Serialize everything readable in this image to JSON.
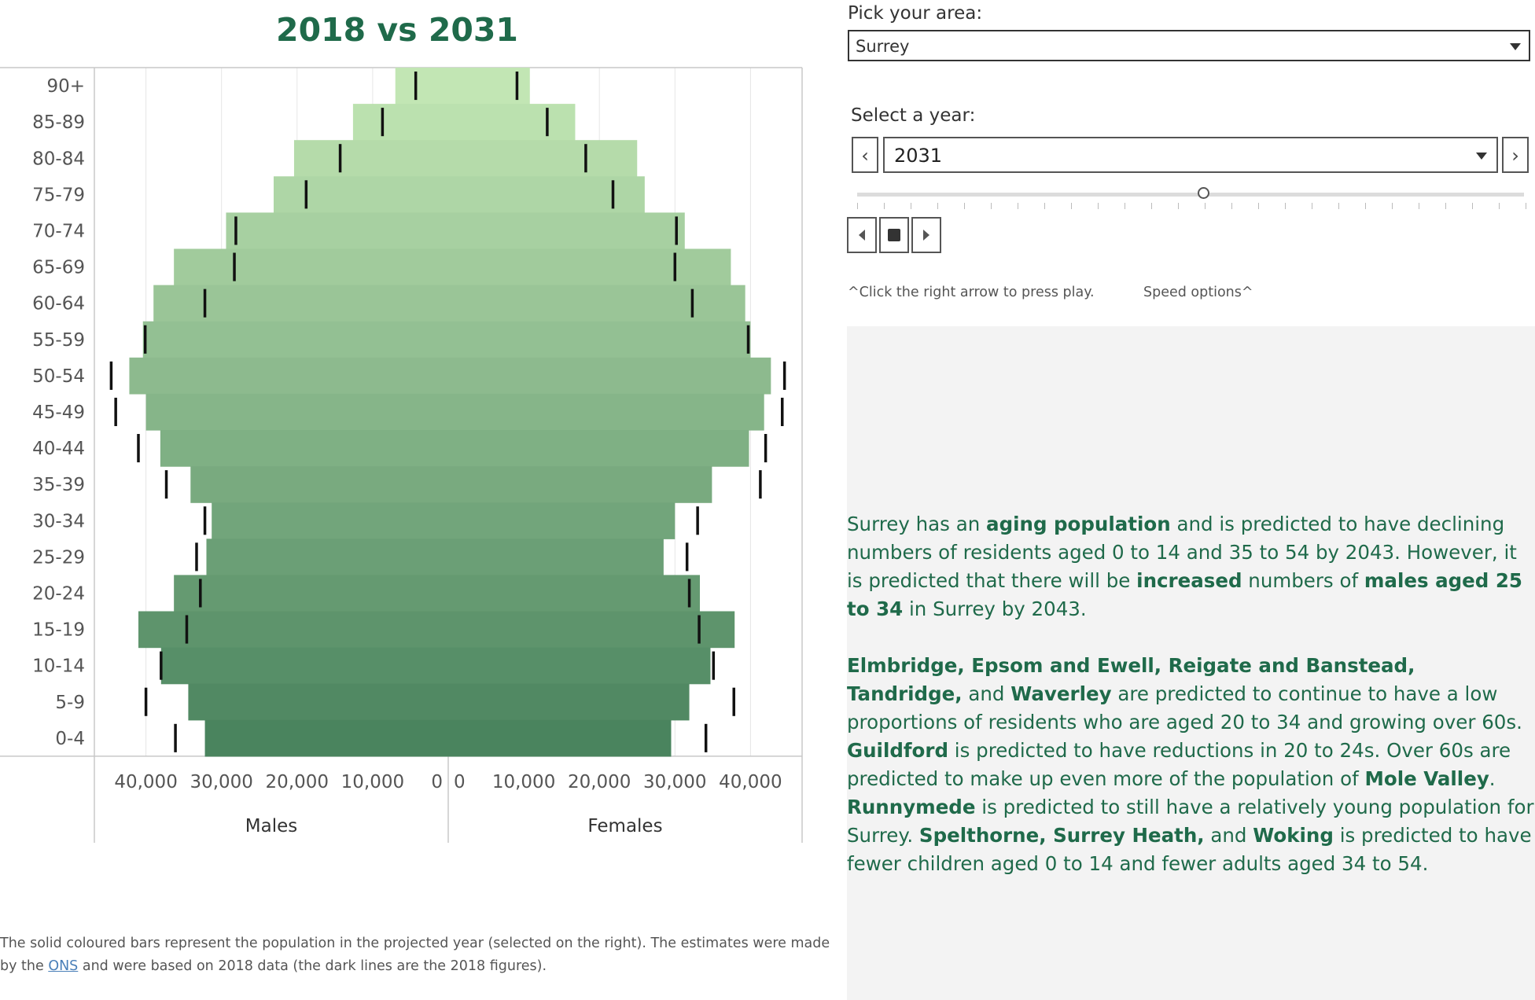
{
  "chart_data": {
    "type": "bar",
    "title": "2018 vs 2031",
    "orientation": "horizontal-butterfly",
    "categories": [
      "90+",
      "85-89",
      "80-84",
      "75-79",
      "70-74",
      "65-69",
      "60-64",
      "55-59",
      "50-54",
      "45-49",
      "40-44",
      "35-39",
      "30-34",
      "25-29",
      "20-24",
      "15-19",
      "10-14",
      "5-9",
      "0-4"
    ],
    "series": [
      {
        "name": "Males",
        "values": [
          7000,
          12600,
          20400,
          23100,
          29400,
          36300,
          39000,
          40400,
          42200,
          40000,
          38100,
          34100,
          31300,
          32000,
          36300,
          41000,
          38000,
          34400,
          32200
        ]
      },
      {
        "name": "Females",
        "values": [
          10800,
          16800,
          25000,
          26000,
          31300,
          37400,
          39300,
          40000,
          42700,
          41800,
          39800,
          34900,
          30000,
          28500,
          33300,
          37900,
          34700,
          31900,
          29500
        ]
      },
      {
        "name": "Males",
        "values": [
          4300,
          8700,
          14300,
          18800,
          28100,
          28300,
          32200,
          40100,
          44600,
          44000,
          41000,
          37300,
          32200,
          33300,
          32800,
          34600,
          38000,
          40000,
          36100
        ]
      },
      {
        "name": "Females",
        "values": [
          9100,
          13100,
          18200,
          21800,
          30200,
          30000,
          32300,
          39700,
          44500,
          44200,
          42000,
          41300,
          33000,
          31600,
          31900,
          33200,
          35100,
          37800,
          34100
        ]
      }
    ],
    "xticks": [
      "40,000",
      "30,000",
      "20,000",
      "10,000",
      "0",
      "0",
      "10,000",
      "20,000",
      "30,000",
      "40,000"
    ],
    "left_label": "Males",
    "right_label": "Females",
    "xlim": [
      0,
      47000
    ]
  },
  "controls": {
    "area_label": "Pick your area:",
    "area_value": "Surrey",
    "year_label": "Select a year:",
    "year_value": "2031",
    "hint_play": "^Click the right arrow to press play.",
    "hint_speed": "Speed options^"
  },
  "footnote": {
    "part1": "The solid coloured bars represent the population in the projected year (selected on the right). The estimates were made by the ",
    "link": "ONS",
    "part2": " and were based on 2018 data (the dark lines are the 2018 figures)."
  },
  "description": {
    "p1": [
      {
        "t": "Surrey has an "
      },
      {
        "t": "aging population",
        "b": true
      },
      {
        "t": " and is predicted to have declining numbers of residents aged 0 to 14 and 35 to 54 by 2043. However, it is predicted that there will be "
      },
      {
        "t": "increased",
        "b": true
      },
      {
        "t": " numbers of "
      },
      {
        "t": "males aged 25 to 34",
        "b": true
      },
      {
        "t": " in Surrey by 2043."
      }
    ],
    "p2": [
      {
        "t": "Elmbridge, Epsom and Ewell, Reigate and Banstead, Tandridge,",
        "b": true
      },
      {
        "t": " and "
      },
      {
        "t": "Waverley",
        "b": true
      },
      {
        "t": " are predicted to continue to have a low proportions of residents who are aged 20 to 34 and growing over 60s. "
      },
      {
        "t": "Guildford",
        "b": true
      },
      {
        "t": " is predicted to have reductions in 20 to 24s. Over 60s are predicted to make up even more of the population of "
      },
      {
        "t": "Mole Valley",
        "b": true
      },
      {
        "t": ". "
      },
      {
        "t": "Runnymede",
        "b": true
      },
      {
        "t": " is predicted to still have a relatively young population for Surrey. "
      },
      {
        "t": "Spelthorne, Surrey Heath,",
        "b": true
      },
      {
        "t": " and "
      },
      {
        "t": "Woking",
        "b": true
      },
      {
        "t": " is predicted to have fewer children aged 0 to 14 and fewer adults aged 34 to 54."
      }
    ]
  },
  "colors": {
    "title": "#1f6a4a",
    "bar_top": "#c2e6b4",
    "bar_bottom": "#4a845e",
    "marker": "#111111",
    "panel": "#f3f3f3"
  }
}
